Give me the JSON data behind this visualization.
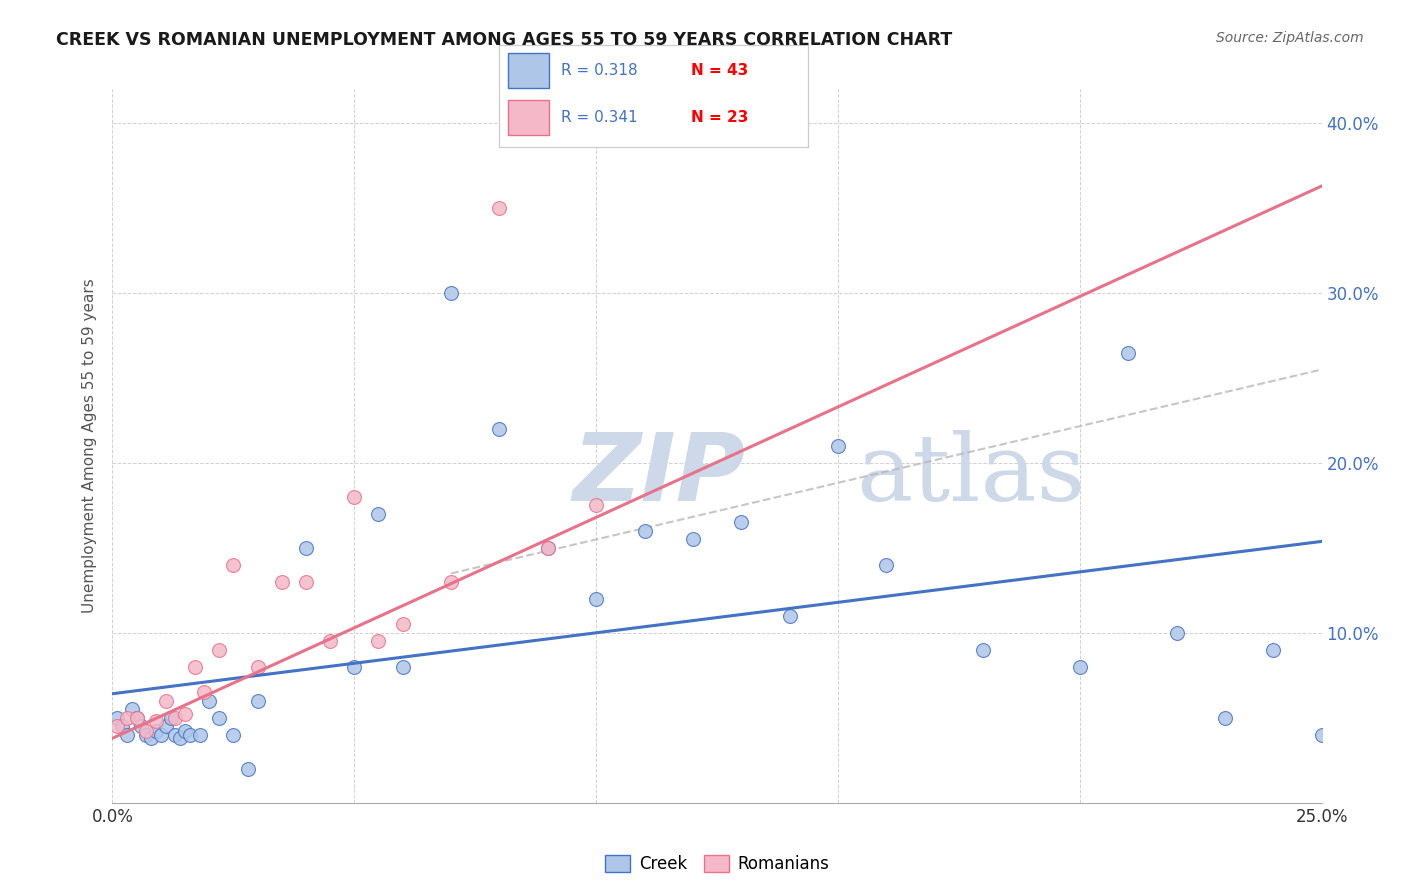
{
  "title": "CREEK VS ROMANIAN UNEMPLOYMENT AMONG AGES 55 TO 59 YEARS CORRELATION CHART",
  "source": "Source: ZipAtlas.com",
  "ylabel": "Unemployment Among Ages 55 to 59 years",
  "xlim": [
    0.0,
    0.25
  ],
  "ylim": [
    0.0,
    0.42
  ],
  "x_ticks": [
    0.0,
    0.05,
    0.1,
    0.15,
    0.2,
    0.25
  ],
  "x_tick_labels": [
    "0.0%",
    "",
    "",
    "",
    "",
    "25.0%"
  ],
  "y_ticks": [
    0.0,
    0.1,
    0.2,
    0.3,
    0.4
  ],
  "y_tick_labels": [
    "",
    "10.0%",
    "20.0%",
    "30.0%",
    "40.0%"
  ],
  "creek_color": "#aec6e8",
  "romanian_color": "#f4b8c8",
  "creek_line_color": "#4472c4",
  "romanian_line_color": "#e8728a",
  "R_creek": 0.318,
  "N_creek": 43,
  "R_romanian": 0.341,
  "N_romanian": 23,
  "creek_x": [
    0.001,
    0.002,
    0.003,
    0.004,
    0.005,
    0.006,
    0.007,
    0.008,
    0.009,
    0.01,
    0.011,
    0.012,
    0.013,
    0.014,
    0.015,
    0.016,
    0.018,
    0.02,
    0.022,
    0.025,
    0.028,
    0.03,
    0.04,
    0.05,
    0.055,
    0.06,
    0.07,
    0.08,
    0.09,
    0.1,
    0.11,
    0.12,
    0.13,
    0.14,
    0.15,
    0.16,
    0.18,
    0.2,
    0.21,
    0.22,
    0.23,
    0.24,
    0.25
  ],
  "creek_y": [
    0.05,
    0.045,
    0.04,
    0.055,
    0.05,
    0.045,
    0.04,
    0.038,
    0.042,
    0.04,
    0.045,
    0.05,
    0.04,
    0.038,
    0.042,
    0.04,
    0.04,
    0.06,
    0.05,
    0.04,
    0.02,
    0.06,
    0.15,
    0.08,
    0.17,
    0.08,
    0.3,
    0.22,
    0.15,
    0.12,
    0.16,
    0.155,
    0.165,
    0.11,
    0.21,
    0.14,
    0.09,
    0.08,
    0.265,
    0.1,
    0.05,
    0.09,
    0.04
  ],
  "romanian_x": [
    0.001,
    0.003,
    0.005,
    0.007,
    0.009,
    0.011,
    0.013,
    0.015,
    0.017,
    0.019,
    0.022,
    0.025,
    0.03,
    0.035,
    0.04,
    0.045,
    0.05,
    0.055,
    0.06,
    0.07,
    0.08,
    0.09,
    0.1
  ],
  "romanian_y": [
    0.045,
    0.05,
    0.05,
    0.042,
    0.048,
    0.06,
    0.05,
    0.052,
    0.08,
    0.065,
    0.09,
    0.14,
    0.08,
    0.13,
    0.13,
    0.095,
    0.18,
    0.095,
    0.105,
    0.13,
    0.35,
    0.15,
    0.175
  ],
  "background_color": "#ffffff",
  "grid_color": "#cccccc",
  "watermark_zip": "ZIP",
  "watermark_atlas": "atlas",
  "watermark_color": "#cdd8e8"
}
